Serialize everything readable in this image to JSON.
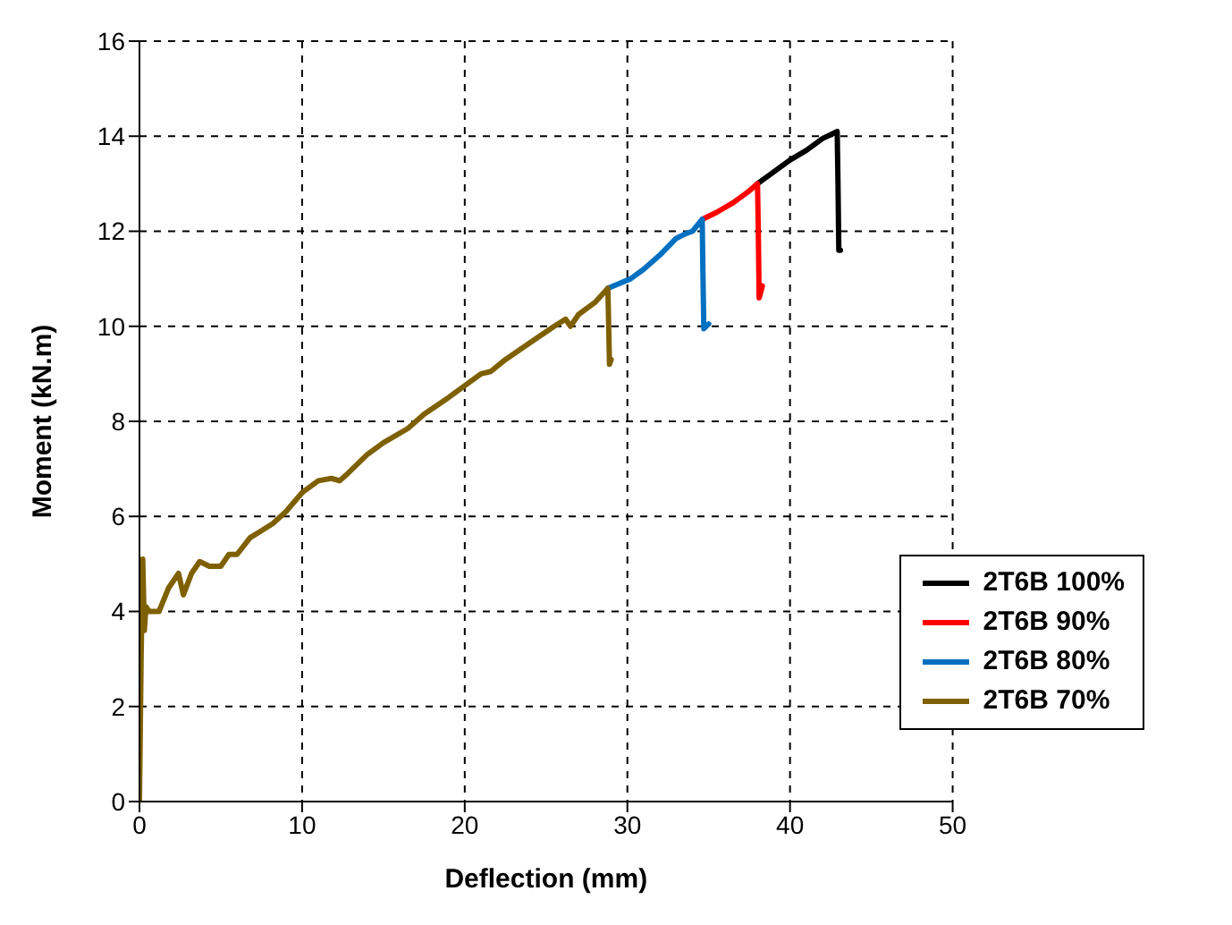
{
  "chart_data": {
    "type": "line",
    "xlabel": "Deflection (mm)",
    "ylabel": "Moment (kN.m)",
    "xlim": [
      0,
      50
    ],
    "xticks": [
      0,
      10,
      20,
      30,
      40,
      50
    ],
    "ylim": [
      0,
      16
    ],
    "yticks": [
      0,
      2,
      4,
      6,
      8,
      10,
      12,
      14,
      16
    ],
    "grid": true,
    "legend": "bottom right",
    "marker": "none",
    "line_style": "solid",
    "series": [
      {
        "name": "2T6B 100%",
        "color": "#000000",
        "x": [
          38.0,
          39,
          40,
          41,
          42,
          42.9,
          42.95,
          43.0,
          43.1
        ],
        "values": [
          13.0,
          13.25,
          13.5,
          13.7,
          13.95,
          14.1,
          13.0,
          11.6,
          11.6
        ]
      },
      {
        "name": "2T6B 90%",
        "color": "#ff0000",
        "x": [
          34.6,
          35.5,
          36.5,
          37.5,
          38.0,
          38.05,
          38.1,
          38.3
        ],
        "values": [
          12.25,
          12.4,
          12.6,
          12.85,
          13.0,
          12.0,
          10.6,
          10.85
        ]
      },
      {
        "name": "2T6B 80%",
        "color": "#0070c0",
        "x": [
          28.8,
          29.5,
          30.2,
          31,
          32,
          33,
          33.6,
          34.0,
          34.6,
          34.65,
          34.7,
          35.0
        ],
        "values": [
          10.8,
          10.9,
          11.0,
          11.2,
          11.5,
          11.85,
          11.95,
          12.0,
          12.25,
          11.0,
          9.95,
          10.05
        ]
      },
      {
        "name": "2T6B 70%",
        "color": "#7f6000",
        "x": [
          0,
          0.1,
          0.2,
          0.3,
          0.4,
          0.6,
          1.2,
          1.8,
          2.4,
          2.7,
          3.2,
          3.7,
          4.3,
          5.0,
          5.5,
          6.0,
          6.8,
          7.5,
          8.2,
          9.0,
          10.0,
          11.0,
          11.8,
          12.3,
          12.8,
          14,
          15,
          16.5,
          17.5,
          19,
          20,
          21,
          21.6,
          22.5,
          24,
          25.5,
          26.2,
          26.5,
          27,
          28.0,
          28.8,
          28.85,
          28.9,
          29.0
        ],
        "values": [
          0,
          3.0,
          5.1,
          3.6,
          4.1,
          4.0,
          4.0,
          4.5,
          4.8,
          4.35,
          4.8,
          5.05,
          4.95,
          4.95,
          5.2,
          5.2,
          5.55,
          5.7,
          5.85,
          6.1,
          6.5,
          6.75,
          6.8,
          6.75,
          6.9,
          7.3,
          7.55,
          7.85,
          8.15,
          8.5,
          8.75,
          9.0,
          9.05,
          9.3,
          9.65,
          10.0,
          10.15,
          10.0,
          10.25,
          10.5,
          10.8,
          10.0,
          9.2,
          9.3
        ]
      }
    ]
  }
}
